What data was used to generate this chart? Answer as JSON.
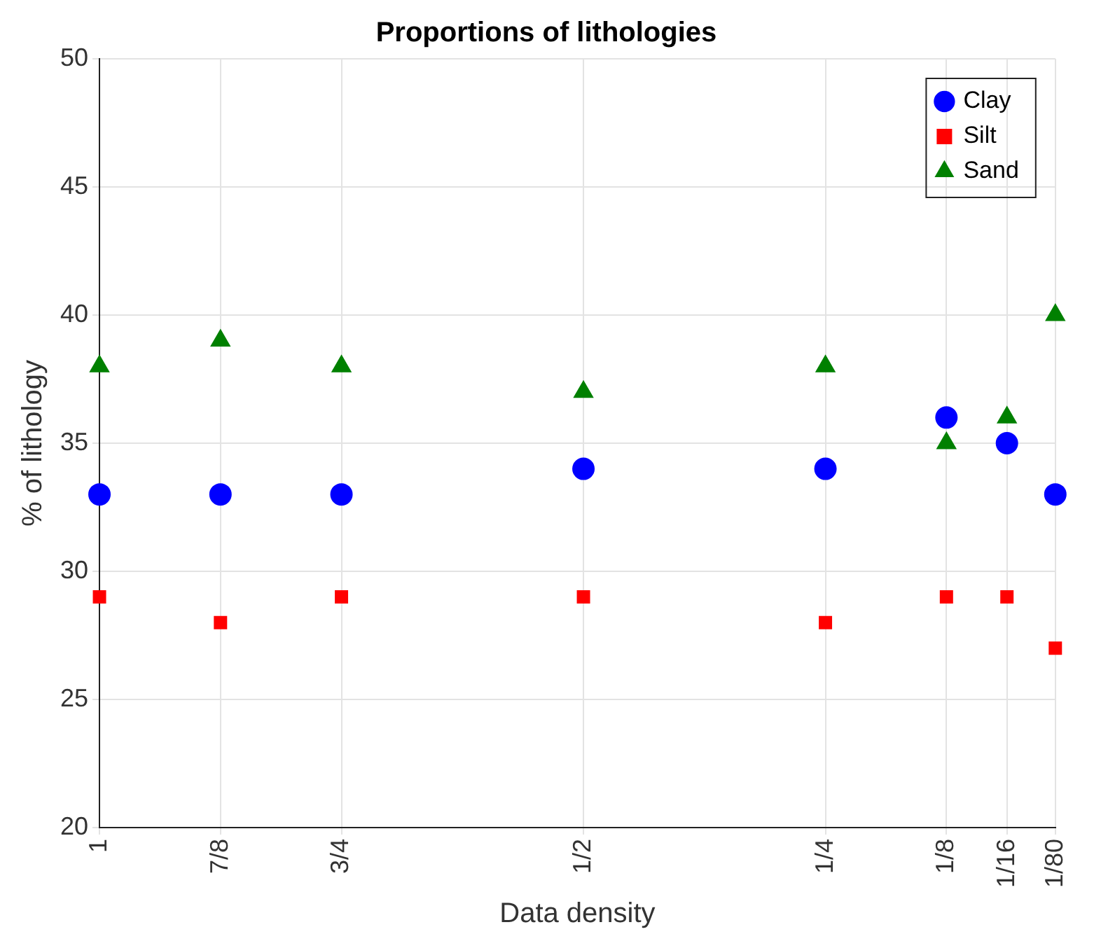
{
  "chart_data": {
    "type": "scatter",
    "title": "Proportions of lithologies",
    "xlabel": "Data density",
    "ylabel": "% of lithology",
    "x": [
      1,
      0.875,
      0.75,
      0.5,
      0.25,
      0.125,
      0.0625,
      0.0125
    ],
    "series": [
      {
        "name": "Clay",
        "color": "#0000ff",
        "marker": "circle",
        "values": [
          33,
          33,
          33,
          34,
          34,
          36,
          35,
          33
        ]
      },
      {
        "name": "Silt",
        "color": "#ff0000",
        "marker": "square",
        "values": [
          29,
          28,
          29,
          29,
          28,
          29,
          29,
          27
        ]
      },
      {
        "name": "Sand",
        "color": "#008000",
        "marker": "triangle",
        "values": [
          38,
          39,
          38,
          37,
          38,
          35,
          36,
          40
        ]
      }
    ],
    "xlim": [
      1,
      0.0125
    ],
    "xticks": [
      1,
      {
        "value": 0.875,
        "label": "7/8"
      },
      {
        "value": 0.75,
        "label": "3/4"
      },
      {
        "value": 0.5,
        "label": "1/2"
      },
      {
        "value": 0.25,
        "label": "1/4"
      },
      {
        "value": 0.125,
        "label": "1/8"
      },
      {
        "value": 0.0625,
        "label": "1/16"
      },
      {
        "value": 0.0125,
        "label": "1/80"
      }
    ],
    "ylim": [
      20,
      50
    ],
    "yticks": [
      20,
      25,
      30,
      35,
      40,
      45,
      50
    ],
    "grid": true,
    "legend": "top right"
  }
}
